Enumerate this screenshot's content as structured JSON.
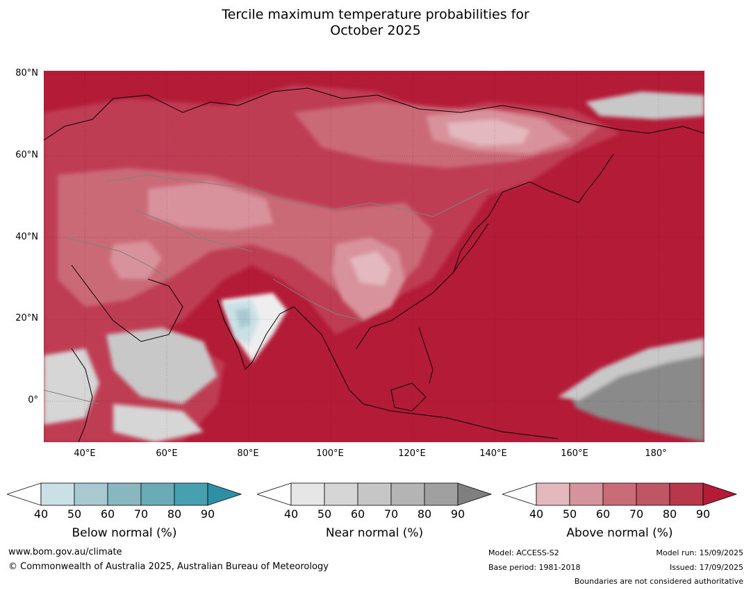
{
  "title_line1": "Tercile maximum temperature probabilities for",
  "title_line2": "October 2025",
  "map": {
    "lat_labels": [
      "80°N",
      "60°N",
      "40°N",
      "20°N",
      "0°"
    ],
    "lon_labels": [
      "40°E",
      "60°E",
      "80°E",
      "100°E",
      "120°E",
      "140°E",
      "160°E",
      "180°"
    ],
    "extent": {
      "lon_min": 30,
      "lon_max": 191,
      "lat_min": -10,
      "lat_max": 81
    },
    "colors": {
      "above_90": "#b31b36",
      "above_80": "#bf3e52",
      "above_70": "#cb6a77",
      "above_60": "#d8929b",
      "above_50": "#e3b9bd",
      "near_90": "#8a8a8a",
      "near_60": "#c8c8c8",
      "below_50": "#a8c9d0",
      "below_40": "#c9e0e6"
    }
  },
  "legends": [
    {
      "label": "Below normal (%)",
      "ticks": [
        "40",
        "50",
        "60",
        "70",
        "80",
        "90"
      ],
      "colors": [
        "#ffffff",
        "#c9e0e6",
        "#a8c9d0",
        "#88b7c0",
        "#6aabb8",
        "#46a0b0",
        "#2f8fa4"
      ]
    },
    {
      "label": "Near normal (%)",
      "ticks": [
        "40",
        "50",
        "60",
        "70",
        "80",
        "90"
      ],
      "colors": [
        "#ffffff",
        "#e6e6e6",
        "#d6d6d6",
        "#c6c6c6",
        "#b4b4b4",
        "#a0a0a0",
        "#7f7f7f"
      ]
    },
    {
      "label": "Above normal (%)",
      "ticks": [
        "40",
        "50",
        "60",
        "70",
        "80",
        "90"
      ],
      "colors": [
        "#ffffff",
        "#e3b9bd",
        "#d5939b",
        "#c96c78",
        "#bf5663",
        "#b8374a",
        "#b31b36"
      ]
    }
  ],
  "footer": {
    "website": "www.bom.gov.au/climate",
    "copyright": "© Commonwealth of Australia 2025, Australian Bureau of Meteorology",
    "model": "Model: ACCESS-S2",
    "base_period": "Base period: 1981-2018",
    "model_run": "Model run: 15/09/2025",
    "issued": "Issued: 17/09/2025",
    "disclaimer": "Boundaries are not considered authoritative"
  }
}
